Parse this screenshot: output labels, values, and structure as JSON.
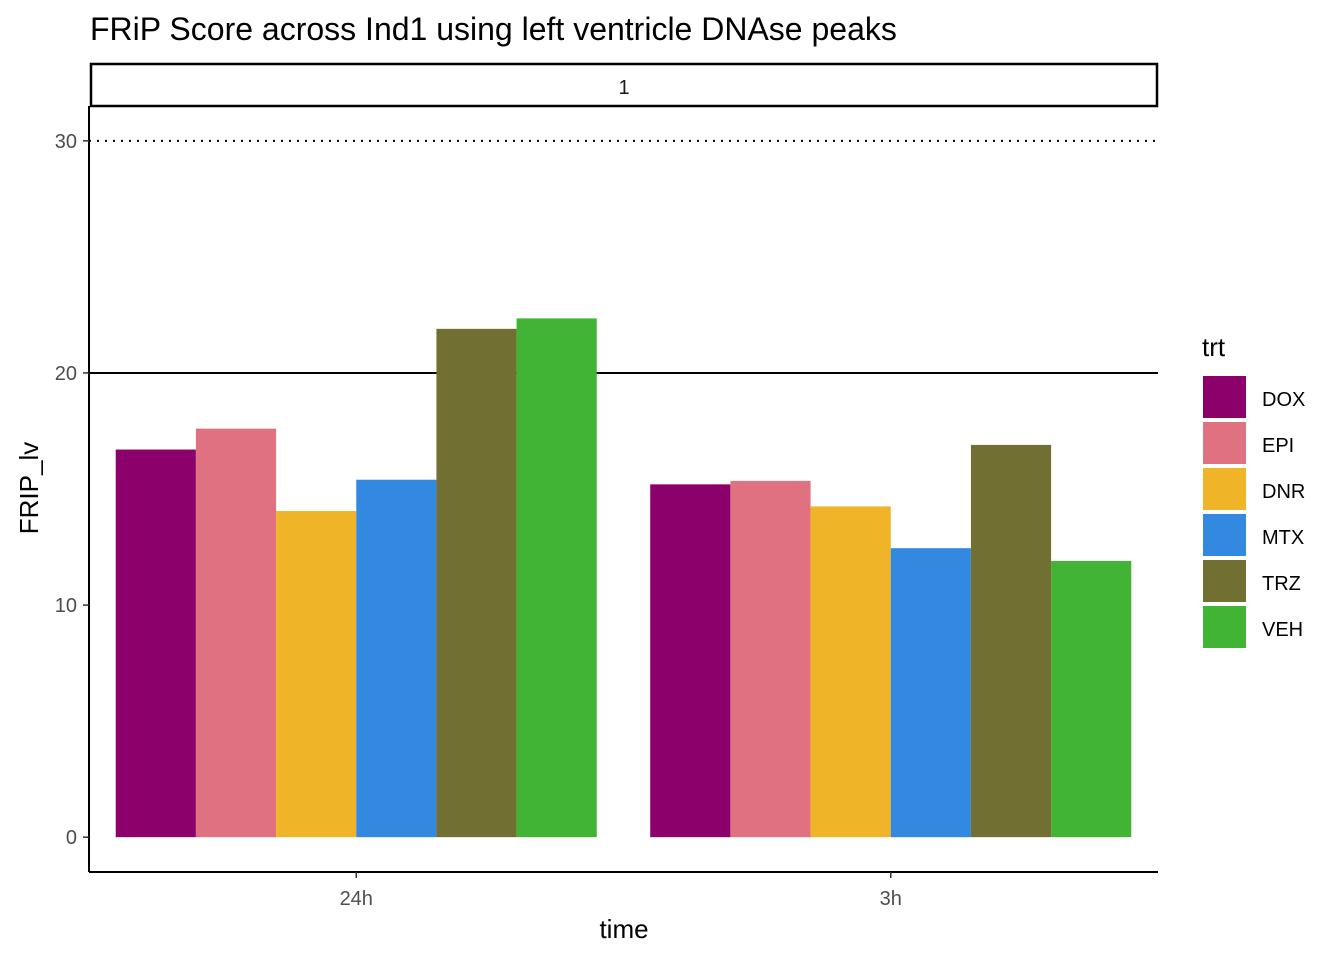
{
  "chart_data": {
    "type": "bar",
    "title": "FRiP Score across Ind1 using left ventricle DNAse peaks",
    "facet_label": "1",
    "xlabel": "time",
    "ylabel": "FRIP_lv",
    "categories": [
      "24h",
      "3h"
    ],
    "y_ticks": [
      "0",
      "10",
      "20",
      "30"
    ],
    "ylim": [
      -1.5,
      31.5
    ],
    "grid": false,
    "reference_lines": [
      {
        "y": 20,
        "style": "solid"
      },
      {
        "y": 30,
        "style": "dotted"
      }
    ],
    "legend": {
      "title": "trt",
      "position": "right"
    },
    "series": [
      {
        "name": "DOX",
        "color": "#8B006B",
        "values": [
          16.7,
          15.2
        ]
      },
      {
        "name": "EPI",
        "color": "#E07180",
        "values": [
          17.6,
          15.35
        ]
      },
      {
        "name": "DNR",
        "color": "#F0B429",
        "values": [
          14.05,
          14.25
        ]
      },
      {
        "name": "MTX",
        "color": "#3388E0",
        "values": [
          15.4,
          12.45
        ]
      },
      {
        "name": "TRZ",
        "color": "#717032",
        "values": [
          21.9,
          16.9
        ]
      },
      {
        "name": "VEH",
        "color": "#41B436",
        "values": [
          22.35,
          11.9
        ]
      }
    ]
  }
}
